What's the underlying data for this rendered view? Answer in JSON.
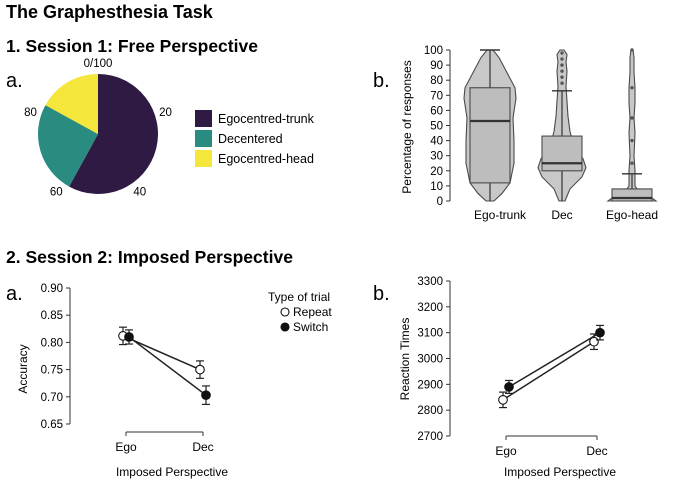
{
  "figure": {
    "title": "The Graphesthesia Task",
    "section1": "1. Session 1: Free Perspective",
    "section2": "2. Session 2: Imposed Perspective",
    "panel_a1": "a.",
    "panel_b1": "b.",
    "panel_a2": "a.",
    "panel_b2": "b."
  },
  "colors": {
    "trunk": "#2f1a44",
    "dec": "#2a8c80",
    "head": "#f4e63a",
    "violin_fill": "#c8c8c8",
    "box_fill": "#bdbdbd",
    "stroke": "#4a4a4a"
  },
  "chart_data": [
    {
      "type": "pie",
      "id": "pie-session1",
      "slices": [
        {
          "label": "Egocentred-trunk",
          "value": 58,
          "color": "#2f1a44"
        },
        {
          "label": "Decentered",
          "value": 25,
          "color": "#2a8c80"
        },
        {
          "label": "Egocentred-head",
          "value": 17,
          "color": "#f4e63a"
        }
      ],
      "legend": [
        "Egocentred-trunk",
        "Decentered",
        "Egocentred-head"
      ],
      "ring_ticks": [
        "0/100",
        "20",
        "40",
        "60",
        "80"
      ],
      "ring_tick_values": [
        0,
        20,
        40,
        60,
        80
      ]
    },
    {
      "type": "violin",
      "id": "violin-session1",
      "ylabel": "Percentage of responses",
      "ylim": [
        0,
        100
      ],
      "yticks": [
        0,
        10,
        20,
        30,
        40,
        50,
        60,
        70,
        80,
        90,
        100
      ],
      "categories": [
        "Ego-trunk",
        "Dec",
        "Ego-head"
      ],
      "boxes": [
        {
          "min": 0,
          "q1": 12,
          "median": 53,
          "q3": 75,
          "max": 100
        },
        {
          "min": 0,
          "q1": 20,
          "median": 25,
          "q3": 43,
          "max": 73
        },
        {
          "min": 0,
          "q1": 0,
          "median": 2,
          "q3": 8,
          "max": 18
        }
      ],
      "outliers": [
        [],
        [
          78,
          82,
          86,
          90,
          94,
          98
        ],
        [
          25,
          40,
          55,
          75,
          100
        ]
      ]
    },
    {
      "type": "line",
      "id": "accuracy-session2",
      "ylabel": "Accuracy",
      "xlabel": "Imposed Perspective",
      "categories": [
        "Ego",
        "Dec"
      ],
      "ylim": [
        0.65,
        0.9
      ],
      "yticks": [
        "0.65",
        "0.70",
        "0.75",
        "0.80",
        "0.85",
        "0.90"
      ],
      "ytick_values": [
        0.65,
        0.7,
        0.75,
        0.8,
        0.85,
        0.9
      ],
      "legend_title": "Type of trial",
      "series": [
        {
          "name": "Repeat",
          "marker": "open",
          "values": [
            0.812,
            0.75
          ],
          "err": [
            0.016,
            0.016
          ]
        },
        {
          "name": "Switch",
          "marker": "filled",
          "values": [
            0.81,
            0.703
          ],
          "err": [
            0.013,
            0.017
          ]
        }
      ]
    },
    {
      "type": "line",
      "id": "rt-session2",
      "ylabel": "Reaction Times",
      "xlabel": "Imposed Perspective",
      "categories": [
        "Ego",
        "Dec"
      ],
      "ylim": [
        2700,
        3300
      ],
      "yticks": [
        "2700",
        "2800",
        "2900",
        "3000",
        "3100",
        "3200",
        "3300"
      ],
      "ytick_values": [
        2700,
        2800,
        2900,
        3000,
        3100,
        3200,
        3300
      ],
      "series": [
        {
          "name": "Repeat",
          "marker": "open",
          "values": [
            2840,
            3065
          ],
          "err": [
            30,
            30
          ]
        },
        {
          "name": "Switch",
          "marker": "filled",
          "values": [
            2890,
            3100
          ],
          "err": [
            25,
            28
          ]
        }
      ]
    }
  ]
}
